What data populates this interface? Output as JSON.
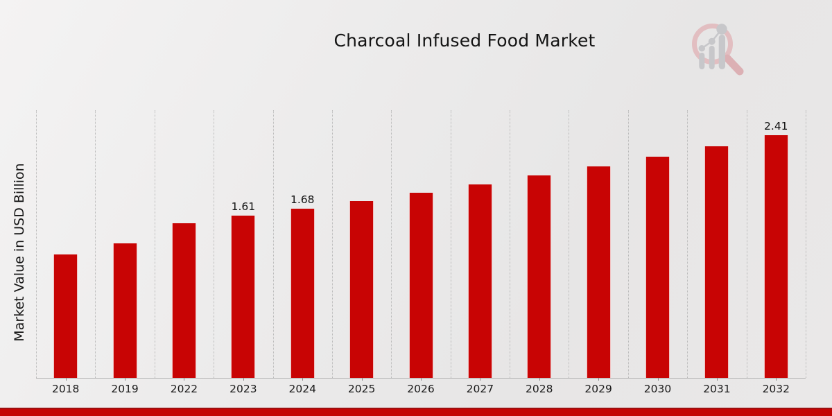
{
  "title": "Charcoal Infused Food Market",
  "ylabel": "Market Value in USD Billion",
  "logo": {
    "icon": "bar-chart-magnifier-logo"
  },
  "colors": {
    "bar": "#c80404",
    "footer_accent": "#c40404",
    "gridline": "#b9b9b9",
    "background": "#ebebeb"
  },
  "chart_data": {
    "type": "bar",
    "title": "Charcoal Infused Food Market",
    "xlabel": "",
    "ylabel": "Market Value in USD Billion",
    "categories": [
      "2018",
      "2019",
      "2022",
      "2023",
      "2024",
      "2025",
      "2026",
      "2027",
      "2028",
      "2029",
      "2030",
      "2031",
      "2032"
    ],
    "values": [
      1.23,
      1.34,
      1.54,
      1.61,
      1.68,
      1.76,
      1.84,
      1.92,
      2.01,
      2.1,
      2.2,
      2.3,
      2.41
    ],
    "data_labels": [
      "",
      "",
      "",
      "1.61",
      "1.68",
      "",
      "",
      "",
      "",
      "",
      "",
      "",
      "2.41"
    ],
    "ylim": [
      0,
      2.66
    ],
    "grid": "vertical-dotted",
    "legend": "none",
    "bar_color": "#c80404"
  }
}
